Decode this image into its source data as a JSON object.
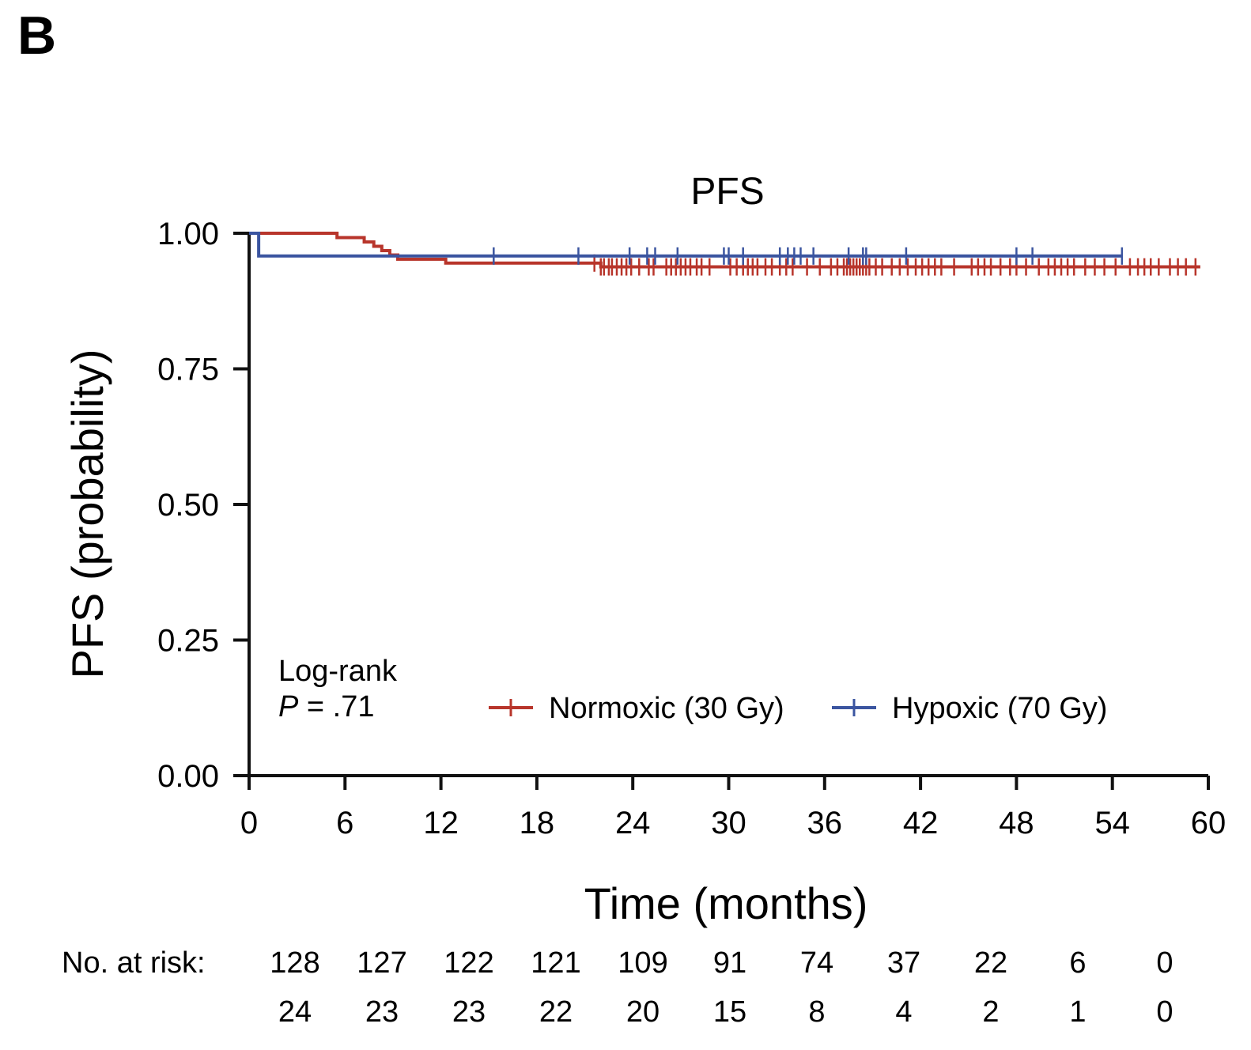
{
  "panel_label": "B",
  "chart_data": {
    "type": "line",
    "subtype": "kaplan-meier",
    "title": "PFS",
    "xlabel": "Time (months)",
    "ylabel": "PFS (probability)",
    "xlim": [
      0,
      60
    ],
    "ylim": [
      0,
      1
    ],
    "x_ticks": [
      0,
      6,
      12,
      18,
      24,
      30,
      36,
      42,
      48,
      54,
      60
    ],
    "x_tick_labels": [
      "0",
      "6",
      "12",
      "18",
      "24",
      "30",
      "36",
      "42",
      "48",
      "54",
      "60"
    ],
    "y_ticks": [
      0,
      0.25,
      0.5,
      0.75,
      1.0
    ],
    "y_tick_labels": [
      "0.00",
      "0.25",
      "0.50",
      "0.75",
      "1.00"
    ],
    "annotation": {
      "line1": "Log-rank",
      "p_symbol": "P",
      "p_value": " = .71"
    },
    "series": [
      {
        "name": "Normoxic (30 Gy)",
        "color": "#b8352b",
        "steps": [
          [
            0,
            1.0
          ],
          [
            5.5,
            0.992
          ],
          [
            7.2,
            0.984
          ],
          [
            7.8,
            0.976
          ],
          [
            8.3,
            0.968
          ],
          [
            8.8,
            0.96
          ],
          [
            9.3,
            0.952
          ],
          [
            12.3,
            0.945
          ],
          [
            22.0,
            0.938
          ],
          [
            59.5,
            0.938
          ]
        ],
        "censor_times": [
          21.6,
          22.0,
          22.2,
          22.5,
          22.7,
          23.0,
          23.3,
          23.6,
          23.9,
          24.4,
          25.0,
          25.3,
          26.1,
          26.4,
          26.7,
          27.0,
          27.3,
          27.6,
          28.0,
          28.3,
          28.8,
          30.1,
          30.5,
          30.9,
          31.2,
          31.5,
          31.8,
          32.3,
          32.7,
          33.2,
          33.6,
          34.0,
          34.9,
          35.7,
          36.4,
          36.8,
          37.2,
          37.4,
          37.6,
          37.8,
          38.0,
          38.2,
          38.4,
          38.6,
          38.8,
          39.2,
          39.6,
          40.2,
          40.7,
          41.2,
          41.7,
          42.1,
          42.5,
          42.9,
          43.3,
          44.1,
          45.2,
          45.6,
          46.0,
          46.4,
          47.0,
          47.6,
          48.0,
          48.6,
          49.4,
          50.0,
          50.4,
          50.8,
          51.2,
          51.6,
          52.3,
          52.9,
          53.5,
          54.2,
          55.1,
          55.6,
          56.0,
          56.4,
          56.9,
          57.6,
          58.1,
          58.6,
          59.2
        ],
        "at_risk": [
          128,
          127,
          122,
          121,
          109,
          91,
          74,
          37,
          22,
          6,
          0
        ]
      },
      {
        "name": "Hypoxic (70 Gy)",
        "color": "#3b55a0",
        "steps": [
          [
            0,
            1.0
          ],
          [
            0.6,
            0.958
          ],
          [
            54.6,
            0.958
          ]
        ],
        "censor_times": [
          15.3,
          20.6,
          23.8,
          24.9,
          25.4,
          26.8,
          29.7,
          30.0,
          30.9,
          33.2,
          33.7,
          34.1,
          34.5,
          35.3,
          37.5,
          38.4,
          38.6,
          41.1,
          48.0,
          49.0,
          54.6
        ],
        "at_risk": [
          24,
          23,
          23,
          22,
          20,
          15,
          8,
          4,
          2,
          1,
          0
        ]
      }
    ],
    "risk_table": {
      "label": "No. at risk:",
      "times": [
        0,
        6,
        12,
        18,
        24,
        30,
        36,
        42,
        48,
        54,
        60
      ]
    }
  }
}
